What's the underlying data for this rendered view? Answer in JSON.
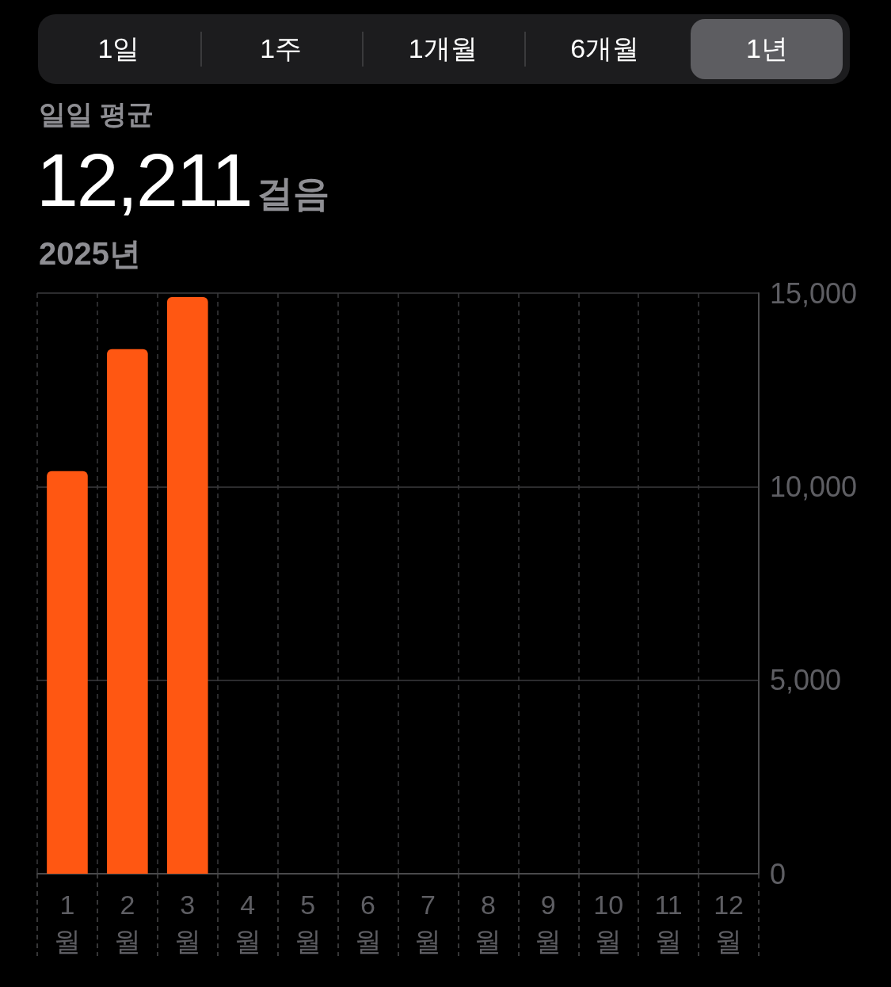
{
  "chart_data": {
    "type": "bar",
    "title": "일일 평균",
    "subtitle": "2025년",
    "annotations": [
      "1일",
      "1주",
      "1개월",
      "6개월",
      "1년",
      "12,211",
      "걸음"
    ],
    "categories": [
      "1월",
      "2월",
      "3월",
      "4월",
      "5월",
      "6월",
      "7월",
      "8월",
      "9월",
      "10월",
      "11월",
      "12월"
    ],
    "values": [
      10400,
      13550,
      14900,
      null,
      null,
      null,
      null,
      null,
      null,
      null,
      null,
      null
    ],
    "color": "#ff5712",
    "ylim": [
      0,
      15000
    ],
    "yticks": [
      0,
      {
        "value": 5000,
        "label": "5,000"
      },
      {
        "value": 10000,
        "label": "10,000"
      },
      {
        "value": 15000,
        "label": "15,000"
      }
    ],
    "grid": true
  }
}
